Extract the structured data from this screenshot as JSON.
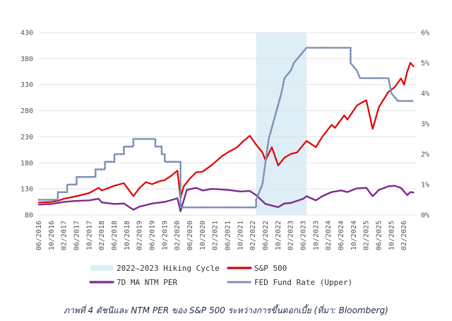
{
  "caption": "ภาพที่ 4  ดัชนีและ NTM PER ของ S&P 500 ระหว่างการขึ้นดอกเบี้ย (ที่มา: Bloomberg)",
  "chart_data": {
    "type": "line",
    "title": "",
    "xlabel": "",
    "ylabel": "",
    "x_ticks": [
      "06/2016",
      "10/2016",
      "02/2017",
      "06/2017",
      "10/2017",
      "02/2018",
      "06/2018",
      "10/2018",
      "02/2019",
      "06/2019",
      "10/2019",
      "02/2020",
      "06/2020",
      "10/2020",
      "02/2021",
      "06/2021",
      "10/2021",
      "02/2022",
      "06/2022",
      "10/2022",
      "02/2023",
      "06/2023",
      "10/2023",
      "02/2024",
      "06/2024",
      "10/2024",
      "02/2025",
      "06/2025",
      "10/2025",
      "02/2026"
    ],
    "y_left": {
      "ticks": [
        80,
        130,
        180,
        230,
        280,
        330,
        380,
        430
      ],
      "ylim": [
        80,
        430
      ]
    },
    "y_right": {
      "ticks": [
        "0%",
        "1%",
        "2%",
        "3%",
        "4%",
        "5%",
        "6%"
      ],
      "ylim": [
        0,
        6
      ]
    },
    "shaded_region": {
      "name": "2022–2023 Hiking Cycle",
      "start": "03/2022",
      "end": "07/2023",
      "color": "#ddeef7"
    },
    "series": [
      {
        "name": "S&P 500",
        "axis": "left",
        "color": "#e00000",
        "style": "solid",
        "points": [
          [
            "06/2016",
            104
          ],
          [
            "10/2016",
            105
          ],
          [
            "12/2016",
            107
          ],
          [
            "02/2017",
            111
          ],
          [
            "06/2017",
            116
          ],
          [
            "10/2017",
            122
          ],
          [
            "01/2018",
            132
          ],
          [
            "02/2018",
            127
          ],
          [
            "06/2018",
            136
          ],
          [
            "09/2018",
            141
          ],
          [
            "12/2018",
            116
          ],
          [
            "02/2019",
            132
          ],
          [
            "04/2019",
            143
          ],
          [
            "06/2019",
            139
          ],
          [
            "08/2019",
            144
          ],
          [
            "10/2019",
            147
          ],
          [
            "12/2019",
            155
          ],
          [
            "02/2020",
            165
          ],
          [
            "03/2020",
            112
          ],
          [
            "04/2020",
            135
          ],
          [
            "06/2020",
            150
          ],
          [
            "08/2020",
            162
          ],
          [
            "10/2020",
            163
          ],
          [
            "01/2021",
            176
          ],
          [
            "04/2021",
            192
          ],
          [
            "06/2021",
            200
          ],
          [
            "09/2021",
            210
          ],
          [
            "11/2021",
            222
          ],
          [
            "01/2022",
            232
          ],
          [
            "03/2022",
            215
          ],
          [
            "05/2022",
            200
          ],
          [
            "06/2022",
            185
          ],
          [
            "08/2022",
            210
          ],
          [
            "10/2022",
            175
          ],
          [
            "12/2022",
            190
          ],
          [
            "02/2023",
            197
          ],
          [
            "04/2023",
            200
          ],
          [
            "07/2023",
            222
          ],
          [
            "10/2023",
            210
          ],
          [
            "12/2023",
            230
          ],
          [
            "03/2024",
            253
          ],
          [
            "04/2024",
            247
          ],
          [
            "07/2024",
            271
          ],
          [
            "08/2024",
            263
          ],
          [
            "11/2024",
            290
          ],
          [
            "01/2025",
            297
          ],
          [
            "02/2025",
            300
          ],
          [
            "04/2025",
            245
          ],
          [
            "06/2025",
            287
          ],
          [
            "09/2025",
            316
          ],
          [
            "11/2025",
            325
          ],
          [
            "01/2026",
            342
          ],
          [
            "02/2026",
            330
          ],
          [
            "03/2026",
            355
          ],
          [
            "04/2026",
            372
          ],
          [
            "05/2026",
            365
          ]
        ]
      },
      {
        "name": "7D MA NTM PER",
        "axis": "left",
        "color": "#7b2c8f",
        "style": "solid",
        "points": [
          [
            "06/2016",
            100
          ],
          [
            "10/2016",
            101
          ],
          [
            "02/2017",
            105
          ],
          [
            "06/2017",
            107
          ],
          [
            "10/2017",
            108
          ],
          [
            "01/2018",
            111
          ],
          [
            "02/2018",
            104
          ],
          [
            "06/2018",
            101
          ],
          [
            "09/2018",
            102
          ],
          [
            "12/2018",
            90
          ],
          [
            "02/2019",
            96
          ],
          [
            "06/2019",
            102
          ],
          [
            "10/2019",
            105
          ],
          [
            "02/2020",
            112
          ],
          [
            "03/2020",
            87
          ],
          [
            "05/2020",
            128
          ],
          [
            "08/2020",
            132
          ],
          [
            "10/2020",
            127
          ],
          [
            "01/2021",
            130
          ],
          [
            "06/2021",
            128
          ],
          [
            "10/2021",
            125
          ],
          [
            "01/2022",
            126
          ],
          [
            "03/2022",
            118
          ],
          [
            "06/2022",
            101
          ],
          [
            "10/2022",
            95
          ],
          [
            "12/2022",
            102
          ],
          [
            "02/2023",
            103
          ],
          [
            "06/2023",
            111
          ],
          [
            "07/2023",
            116
          ],
          [
            "10/2023",
            108
          ],
          [
            "12/2023",
            116
          ],
          [
            "03/2024",
            124
          ],
          [
            "06/2024",
            127
          ],
          [
            "08/2024",
            124
          ],
          [
            "11/2024",
            131
          ],
          [
            "02/2025",
            132
          ],
          [
            "04/2025",
            116
          ],
          [
            "06/2025",
            128
          ],
          [
            "09/2025",
            135
          ],
          [
            "11/2025",
            136
          ],
          [
            "01/2026",
            132
          ],
          [
            "03/2026",
            118
          ],
          [
            "04/2026",
            124
          ],
          [
            "05/2026",
            123
          ]
        ]
      },
      {
        "name": "FED Fund Rate (Upper)",
        "axis": "right",
        "color": "#7a8db3",
        "style": "dotted",
        "points": [
          [
            "06/2016",
            0.5
          ],
          [
            "12/2016",
            0.5
          ],
          [
            "12/2016",
            0.75
          ],
          [
            "03/2017",
            0.75
          ],
          [
            "03/2017",
            1.0
          ],
          [
            "06/2017",
            1.0
          ],
          [
            "06/2017",
            1.25
          ],
          [
            "12/2017",
            1.25
          ],
          [
            "12/2017",
            1.5
          ],
          [
            "03/2018",
            1.5
          ],
          [
            "03/2018",
            1.75
          ],
          [
            "06/2018",
            1.75
          ],
          [
            "06/2018",
            2.0
          ],
          [
            "09/2018",
            2.0
          ],
          [
            "09/2018",
            2.25
          ],
          [
            "12/2018",
            2.25
          ],
          [
            "12/2018",
            2.5
          ],
          [
            "07/2019",
            2.5
          ],
          [
            "07/2019",
            2.25
          ],
          [
            "09/2019",
            2.25
          ],
          [
            "09/2019",
            2.0
          ],
          [
            "10/2019",
            2.0
          ],
          [
            "10/2019",
            1.75
          ],
          [
            "03/2020",
            1.75
          ],
          [
            "03/2020",
            0.25
          ],
          [
            "03/2022",
            0.25
          ],
          [
            "03/2022",
            0.5
          ],
          [
            "05/2022",
            1.0
          ],
          [
            "06/2022",
            1.75
          ],
          [
            "07/2022",
            2.5
          ],
          [
            "09/2022",
            3.25
          ],
          [
            "11/2022",
            4.0
          ],
          [
            "12/2022",
            4.5
          ],
          [
            "02/2023",
            4.75
          ],
          [
            "03/2023",
            5.0
          ],
          [
            "05/2023",
            5.25
          ],
          [
            "07/2023",
            5.5
          ],
          [
            "09/2024",
            5.5
          ],
          [
            "09/2024",
            5.0
          ],
          [
            "11/2024",
            4.75
          ],
          [
            "12/2024",
            4.5
          ],
          [
            "09/2025",
            4.5
          ],
          [
            "10/2025",
            4.0
          ],
          [
            "12/2025",
            3.75
          ],
          [
            "05/2026",
            3.75
          ]
        ]
      }
    ]
  }
}
